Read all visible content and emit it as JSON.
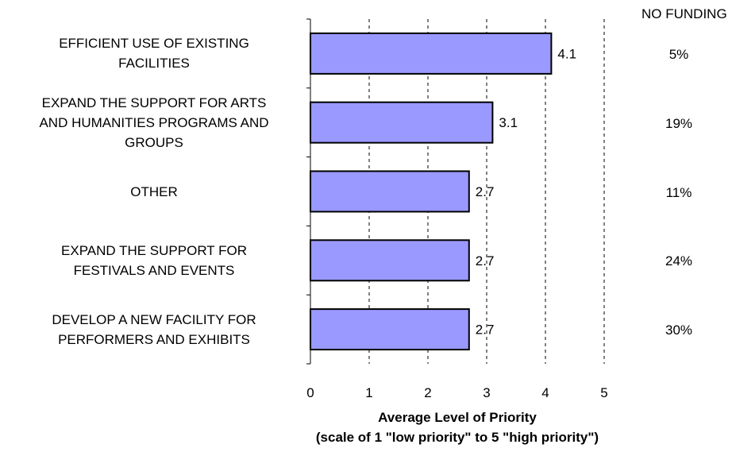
{
  "chart_data": {
    "type": "bar",
    "orientation": "horizontal",
    "categories": [
      [
        "EFFICIENT USE OF EXISTING",
        "FACILITIES"
      ],
      [
        "EXPAND THE SUPPORT FOR ARTS",
        "AND HUMANITIES PROGRAMS AND",
        "GROUPS"
      ],
      [
        "OTHER"
      ],
      [
        "EXPAND THE SUPPORT FOR",
        "FESTIVALS AND EVENTS"
      ],
      [
        "DEVELOP A NEW FACILITY FOR",
        "PERFORMERS AND EXHIBITS"
      ]
    ],
    "values": [
      4.1,
      3.1,
      2.7,
      2.7,
      2.7
    ],
    "value_labels": [
      "4.1",
      "3.1",
      "2.7",
      "2.7",
      "2.7"
    ],
    "no_funding_header": "NO FUNDING",
    "no_funding": [
      "5%",
      "19%",
      "11%",
      "24%",
      "30%"
    ],
    "xlabel": "Average Level of Priority",
    "xlabel_sub": "(scale of 1 \"low priority\" to 5 \"high priority\")",
    "xlim": [
      0,
      5
    ],
    "xticks": [
      "0",
      "1",
      "2",
      "3",
      "4",
      "5"
    ],
    "grid": "vertical dashed",
    "bar_color": "#9999ff"
  }
}
